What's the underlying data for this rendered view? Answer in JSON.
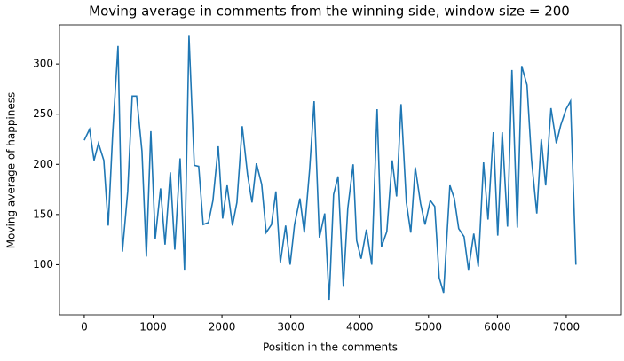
{
  "chart_data": {
    "type": "line",
    "title": "Moving average in comments from the winning side, window size = 200",
    "x_label": "Position in the comments",
    "y_label": "Moving average of happiness",
    "x": [
      0,
      77,
      142,
      206,
      284,
      348,
      412,
      490,
      554,
      631,
      696,
      760,
      838,
      902,
      967,
      1031,
      1108,
      1173,
      1250,
      1315,
      1392,
      1456,
      1521,
      1598,
      1662,
      1727,
      1804,
      1869,
      1946,
      2010,
      2075,
      2152,
      2217,
      2294,
      2371,
      2436,
      2500,
      2577,
      2642,
      2719,
      2783,
      2848,
      2925,
      2990,
      3054,
      3132,
      3196,
      3273,
      3338,
      3415,
      3492,
      3557,
      3621,
      3686,
      3763,
      3827,
      3905,
      3956,
      4021,
      4098,
      4175,
      4253,
      4317,
      4394,
      4472,
      4536,
      4601,
      4678,
      4742,
      4807,
      4884,
      4949,
      5026,
      5090,
      5155,
      5219,
      5310,
      5374,
      5438,
      5516,
      5580,
      5657,
      5722,
      5799,
      5864,
      5941,
      6005,
      6070,
      6147,
      6211,
      6289,
      6353,
      6430,
      6495,
      6572,
      6637,
      6701,
      6778,
      6856,
      6920,
      6998,
      7062,
      7140
    ],
    "series": [
      {
        "name": "moving average",
        "color": "#1f77b4",
        "values": [
          224,
          235,
          204,
          221,
          204,
          139,
          230,
          318,
          113,
          173,
          268,
          268,
          213,
          108,
          233,
          126,
          176,
          120,
          192,
          115,
          206,
          95,
          328,
          199,
          198,
          140,
          142,
          164,
          218,
          146,
          179,
          139,
          162,
          238,
          190,
          162,
          201,
          180,
          132,
          140,
          173,
          102,
          139,
          100,
          140,
          166,
          132,
          195,
          263,
          127,
          151,
          65,
          170,
          188,
          78,
          156,
          200,
          124,
          106,
          135,
          100,
          255,
          118,
          133,
          204,
          168,
          260,
          162,
          132,
          197,
          161,
          140,
          164,
          158,
          87,
          72,
          179,
          166,
          136,
          128,
          95,
          131,
          98,
          202,
          145,
          232,
          129,
          232,
          138,
          294,
          137,
          298,
          279,
          205,
          151,
          225,
          179,
          256,
          221,
          239,
          255,
          263,
          100
        ]
      }
    ],
    "xlim": [
      -360,
      7800
    ],
    "ylim": [
      50,
      339
    ],
    "xticks": [
      0,
      1000,
      2000,
      3000,
      4000,
      5000,
      6000,
      7000
    ],
    "yticks": [
      100,
      150,
      200,
      250,
      300
    ]
  }
}
